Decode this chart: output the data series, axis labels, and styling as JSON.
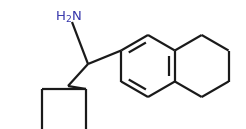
{
  "background_color": "#ffffff",
  "line_color": "#1a1a1a",
  "nh2_color": "#3333aa",
  "line_width": 1.6,
  "figsize": [
    2.46,
    1.29
  ],
  "dpi": 100,
  "nh2_text": "H$_2$N",
  "nh2_fontsize": 9.5,
  "xlim": [
    0,
    246
  ],
  "ylim": [
    0,
    129
  ]
}
